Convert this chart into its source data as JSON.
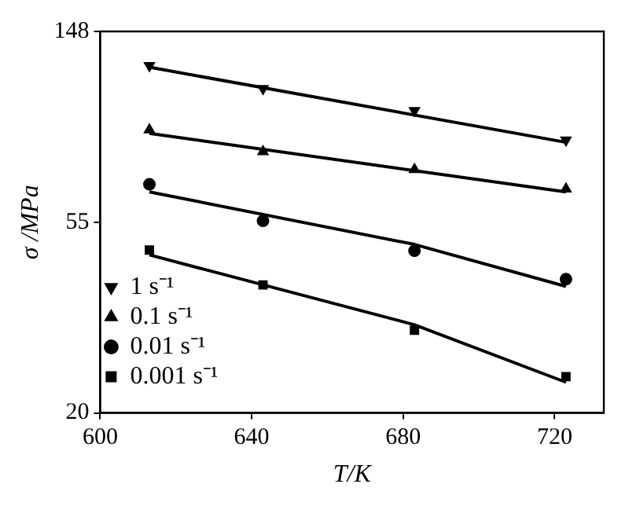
{
  "chart_data": {
    "type": "scatter",
    "xlabel": "T/K",
    "ylabel": "σ /MPa",
    "log": "y",
    "xlim": [
      600,
      733
    ],
    "xticks": [
      600,
      640,
      680,
      720
    ],
    "ylim": [
      20.09,
      148.4
    ],
    "yticks": [
      {
        "value": 20.09,
        "label": "20"
      },
      {
        "value": 54.6,
        "label": "55"
      },
      {
        "value": 148.4,
        "label": "148"
      }
    ],
    "grid": false,
    "legend": "bottom left",
    "series": [
      {
        "name": "1 s⁻¹",
        "color": "#000000",
        "marker": "triangle-down",
        "x": [
          613,
          643,
          683,
          723
        ],
        "values": [
          124,
          110,
          98,
          84
        ]
      },
      {
        "name": "0.1 s⁻¹",
        "color": "#000000",
        "marker": "triangle",
        "x": [
          613,
          643,
          683,
          723
        ],
        "values": [
          88.6,
          79,
          72,
          65
        ]
      },
      {
        "name": "0.01 s⁻¹",
        "color": "#000000",
        "marker": "circle",
        "x": [
          613,
          643,
          683,
          723
        ],
        "values": [
          66.6,
          55,
          47,
          40.5
        ]
      },
      {
        "name": "0.001 s⁻¹",
        "color": "#000000",
        "marker": "square",
        "x": [
          613,
          643,
          683,
          723
        ],
        "values": [
          47.2,
          39.3,
          31,
          24.3
        ]
      },
      {
        "type": "line",
        "color": "#000000",
        "marker": "none",
        "x": [
          613,
          723
        ],
        "values": [
          123,
          83
        ]
      },
      {
        "type": "line",
        "color": "#000000",
        "marker": "none",
        "x": [
          613,
          723
        ],
        "values": [
          87,
          64
        ]
      },
      {
        "type": "line",
        "color": "#000000",
        "marker": "none",
        "x": [
          613,
          683,
          723
        ],
        "values": [
          64,
          48.6,
          39
        ]
      },
      {
        "type": "line",
        "color": "#000000",
        "marker": "none",
        "x": [
          613,
          683,
          723
        ],
        "values": [
          46,
          31.9,
          23.6
        ]
      }
    ]
  }
}
